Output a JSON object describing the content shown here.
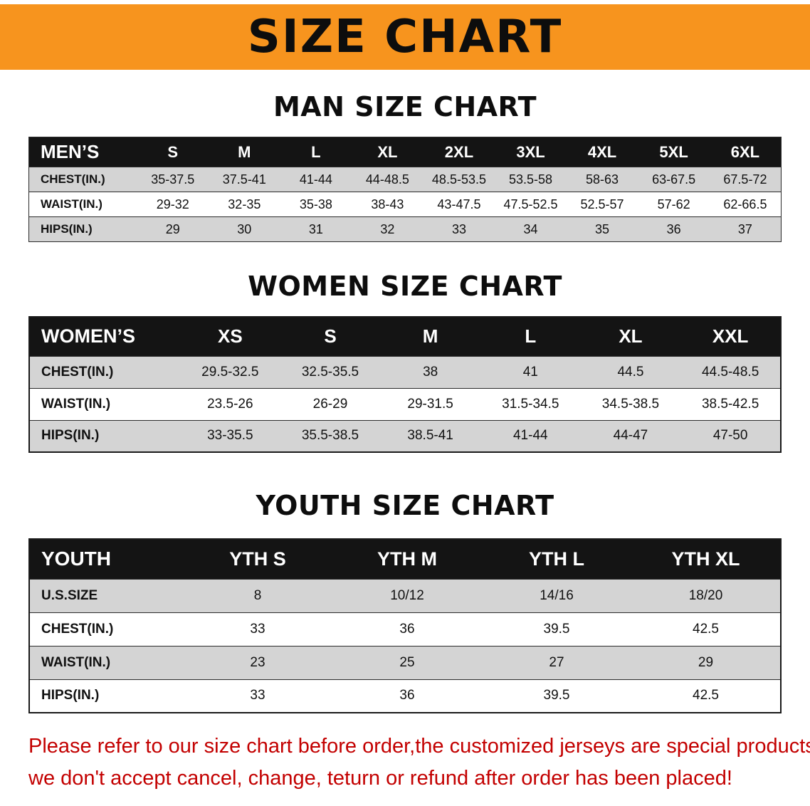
{
  "banner": {
    "title": "SIZE CHART"
  },
  "men": {
    "heading": "MAN SIZE CHART",
    "table": {
      "header": [
        "MEN’S",
        "S",
        "M",
        "L",
        "XL",
        "2XL",
        "3XL",
        "4XL",
        "5XL",
        "6XL"
      ],
      "rows": [
        [
          "CHEST(IN.)",
          "35-37.5",
          "37.5-41",
          "41-44",
          "44-48.5",
          "48.5-53.5",
          "53.5-58",
          "58-63",
          "63-67.5",
          "67.5-72"
        ],
        [
          "WAIST(IN.)",
          "29-32",
          "32-35",
          "35-38",
          "38-43",
          "43-47.5",
          "47.5-52.5",
          "52.5-57",
          "57-62",
          "62-66.5"
        ],
        [
          "HIPS(IN.)",
          "29",
          "30",
          "31",
          "32",
          "33",
          "34",
          "35",
          "36",
          "37"
        ]
      ]
    }
  },
  "women": {
    "heading": "WOMEN SIZE CHART",
    "table": {
      "header": [
        "WOMEN’S",
        "XS",
        "S",
        "M",
        "L",
        "XL",
        "XXL"
      ],
      "rows": [
        [
          "CHEST(IN.)",
          "29.5-32.5",
          "32.5-35.5",
          "38",
          "41",
          "44.5",
          "44.5-48.5"
        ],
        [
          "WAIST(IN.)",
          "23.5-26",
          "26-29",
          "29-31.5",
          "31.5-34.5",
          "34.5-38.5",
          "38.5-42.5"
        ],
        [
          "HIPS(IN.)",
          "33-35.5",
          "35.5-38.5",
          "38.5-41",
          "41-44",
          "44-47",
          "47-50"
        ]
      ]
    }
  },
  "youth": {
    "heading": "YOUTH SIZE CHART",
    "table": {
      "header": [
        "YOUTH",
        "YTH S",
        "YTH M",
        "YTH L",
        "YTH XL"
      ],
      "rows": [
        [
          "U.S.SIZE",
          "8",
          "10/12",
          "14/16",
          "18/20"
        ],
        [
          "CHEST(IN.)",
          "33",
          "36",
          "39.5",
          "42.5"
        ],
        [
          "WAIST(IN.)",
          "23",
          "25",
          "27",
          "29"
        ],
        [
          "HIPS(IN.)",
          "33",
          "36",
          "39.5",
          "42.5"
        ]
      ]
    }
  },
  "footer": {
    "line1": "Please refer to our size chart before order,the customized jerseys are special products,",
    "line2": "we don't accept cancel, change, teturn or refund after order has been placed!"
  },
  "colors": {
    "banner_bg": "#f7941e",
    "table_header_bg": "#141414",
    "row_stripe": "#d4d4d4",
    "notice_text": "#c30000"
  }
}
